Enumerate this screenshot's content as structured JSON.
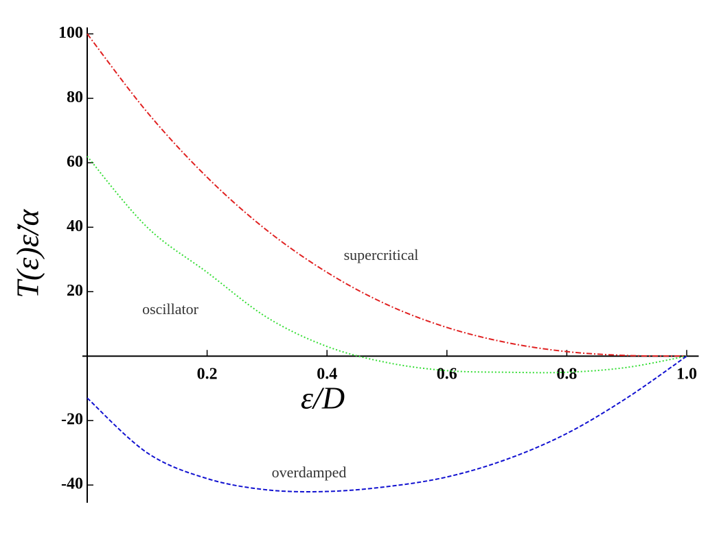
{
  "chart_data": {
    "type": "line",
    "x_label": "ε/D",
    "y_label": "T(ε)ε̇/α",
    "x": [
      0,
      0.1,
      0.2,
      0.3,
      0.4,
      0.5,
      0.6,
      0.7,
      0.8,
      0.9,
      1.0
    ],
    "series": [
      {
        "color": "#e02020",
        "values": [
          100,
          75.7,
          55.5,
          39,
          26,
          16,
          8.9,
          4.2,
          1.4,
          0.2,
          0
        ]
      },
      {
        "color": "#33dd33",
        "values": [
          62,
          40,
          26,
          12,
          3,
          -2,
          -4.5,
          -5,
          -5,
          -3.5,
          0
        ]
      },
      {
        "color": "#1010d0",
        "values": [
          -13,
          -30,
          -38,
          -41.5,
          -42,
          -40.5,
          -37.5,
          -32,
          -24,
          -13,
          0
        ]
      }
    ],
    "annotations": [
      "supercritical",
      "oscillator",
      "overdamped"
    ],
    "xlim": [
      0,
      1.02
    ],
    "ylim": [
      -45.5,
      102
    ],
    "xticks": [
      0.2,
      0.4,
      0.6,
      0.8,
      {
        "value": 1,
        "label": "1.0"
      }
    ],
    "yticks": [
      -40,
      -20,
      20,
      40,
      60,
      80,
      100
    ]
  }
}
